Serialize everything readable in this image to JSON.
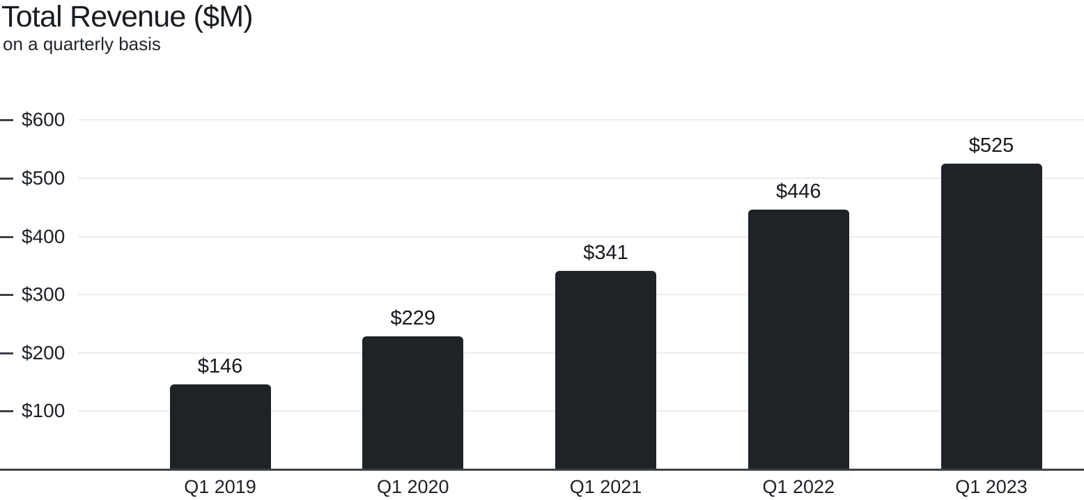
{
  "chart_data": {
    "type": "bar",
    "title": "Total Revenue ($M)",
    "subtitle": "on a quarterly basis",
    "categories": [
      "Q1 2019",
      "Q1 2020",
      "Q1 2021",
      "Q1 2022",
      "Q1 2023"
    ],
    "values": [
      146,
      229,
      341,
      446,
      525
    ],
    "value_labels": [
      "$146",
      "$229",
      "$341",
      "$446",
      "$525"
    ],
    "xlabel": "",
    "ylabel": "",
    "ylim": [
      0,
      600
    ],
    "y_ticks": [
      {
        "value": 100,
        "label": "$100"
      },
      {
        "value": 200,
        "label": "$200"
      },
      {
        "value": 300,
        "label": "$300"
      },
      {
        "value": 400,
        "label": "$400"
      },
      {
        "value": 500,
        "label": "$500"
      },
      {
        "value": 600,
        "label": "$600"
      }
    ],
    "grid": "horizontal",
    "legend": "none",
    "colors": {
      "bar": "#1f2328",
      "grid": "#ededed",
      "axis": "#3d4248",
      "text": "#1d2126",
      "background": "#ffffff"
    }
  }
}
